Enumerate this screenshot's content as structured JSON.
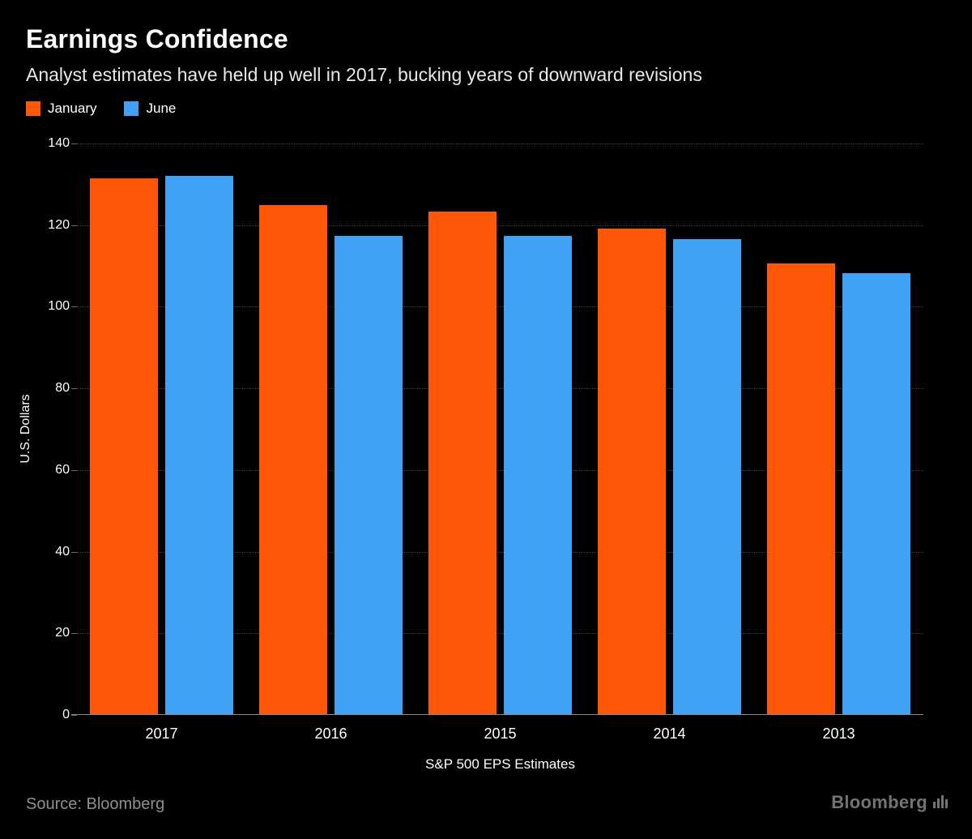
{
  "header": {
    "title": "Earnings Confidence",
    "subtitle": "Analyst estimates have held up well in 2017, bucking years of downward revisions"
  },
  "chart_data": {
    "type": "bar",
    "title": "Earnings Confidence",
    "subtitle": "Analyst estimates have held up well in 2017, bucking years of downward revisions",
    "categories": [
      "2017",
      "2016",
      "2015",
      "2014",
      "2013"
    ],
    "series": [
      {
        "name": "January",
        "color": "#ff5708",
        "values": [
          131.3,
          124.7,
          123.2,
          119.0,
          110.5
        ]
      },
      {
        "name": "June",
        "color": "#3fa2f5",
        "values": [
          131.8,
          117.2,
          117.1,
          116.3,
          108.1
        ]
      }
    ],
    "xlabel": "S&P 500 EPS Estimates",
    "ylabel": "U.S. Dollars",
    "ylim": [
      0,
      140
    ],
    "ytick_step": 20,
    "grid": "dotted horizontal",
    "legend_position": "top-left",
    "background": "#000000"
  },
  "footer": {
    "source_text": "Source: Bloomberg",
    "brand": "Bloomberg"
  }
}
